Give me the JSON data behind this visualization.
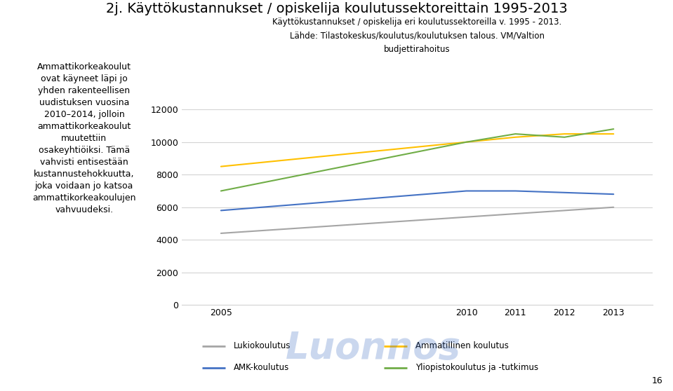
{
  "title": "2j. Käyttökustannukset / opiskelija koulutussektoreittain 1995-2013",
  "chart_title_line1": "Käyttökustannukset / opiskelija eri koulutussektoreilla v. 1995 - 2013.",
  "chart_title_line2": "Lähde: Tilastokeskus/koulutus/koulutuksen talous. VM/Valtion",
  "chart_title_line3": "budjettirahoitus",
  "left_text_lines": [
    "Ammattikorkeakoulut",
    "ovat käyneet läpi jo",
    "yhden rakenteellisen",
    "uudistuksen vuosina",
    "2010–2014, jolloin",
    "ammattikorkeakoulut",
    "muutettiin",
    "osakeyhtiöiksi. Tämä",
    "vahvisti entisestään",
    "kustannustehokkuutta,",
    "joka voidaan jo katsoa",
    "ammattikorkeakoulujen",
    "vahvuudeksi."
  ],
  "x_values": [
    2005,
    2010,
    2011,
    2012,
    2013
  ],
  "series": {
    "Lukiokoulutus": {
      "values": [
        4400,
        5400,
        5600,
        5800,
        6000
      ],
      "color": "#A5A5A5",
      "linewidth": 1.5
    },
    "AMK-koulutus": {
      "values": [
        5800,
        7000,
        7000,
        6900,
        6800
      ],
      "color": "#4472C4",
      "linewidth": 1.5
    },
    "Ammatillinen koulutus": {
      "values": [
        8500,
        10000,
        10300,
        10500,
        10500
      ],
      "color": "#FFC000",
      "linewidth": 1.5
    },
    "Yliopistokoulutus ja -tutkimus": {
      "values": [
        7000,
        10000,
        10500,
        10300,
        10800
      ],
      "color": "#70AD47",
      "linewidth": 1.5
    }
  },
  "legend_order": [
    "Lukiokoulutus",
    "Ammatillinen koulutus",
    "AMK-koulutus",
    "Yliopistokoulutus ja -tutkimus"
  ],
  "ylim": [
    0,
    12000
  ],
  "yticks": [
    0,
    2000,
    4000,
    6000,
    8000,
    10000,
    12000
  ],
  "background_color": "#FFFFFF",
  "grid_color": "#D3D3D3",
  "watermark": "Luonnos",
  "watermark_color": "#4472C4",
  "page_number": "16"
}
